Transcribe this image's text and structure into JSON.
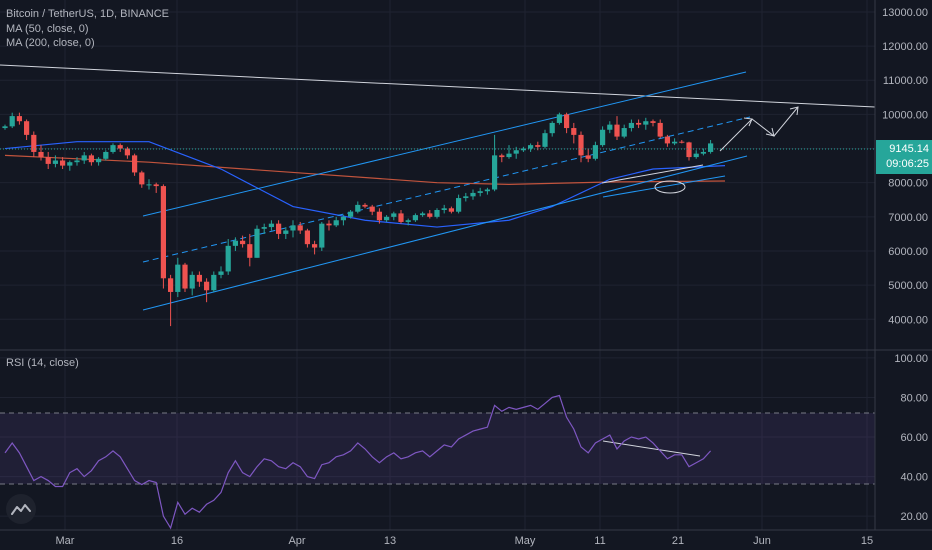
{
  "header": {
    "symbol_line": "Bitcoin / TetherUS, 1D, BINANCE",
    "ma50_label": "MA (50, close, 0)",
    "ma200_label": "MA (200, close, 0)",
    "rsi_label": "RSI (14, close)"
  },
  "price_tag": {
    "price": "9145.14",
    "countdown": "09:06:25"
  },
  "colors": {
    "background": "#131722",
    "up": "#26a69a",
    "down": "#ef5350",
    "ma50": "#2962ff",
    "ma200": "#c2543d",
    "channel": "#2196f3",
    "rsi": "#7e57c2",
    "grid": "#1f2331",
    "axis_text": "#b2b5be"
  },
  "chart_data": [
    {
      "type": "candlestick",
      "title": "Bitcoin / TetherUS, 1D, BINANCE",
      "x_tick_labels": [
        "Mar",
        "16",
        "Apr",
        "13",
        "May",
        "11",
        "21",
        "Jun",
        "15"
      ],
      "y_tick_labels": [
        "4000.00",
        "5000.00",
        "6000.00",
        "7000.00",
        "8000.00",
        "9000.00",
        "10000.00",
        "11000.00",
        "12000.00",
        "13000.00"
      ],
      "ylim": [
        3100,
        13350
      ],
      "grid": true,
      "current_price": 9145.14,
      "series": [
        {
          "name": "BTC/USDT daily",
          "ohlc": [
            [
              9600,
              9700,
              9550,
              9650
            ],
            [
              9650,
              10050,
              9600,
              9950
            ],
            [
              9950,
              10050,
              9700,
              9800
            ],
            [
              9800,
              9850,
              9250,
              9400
            ],
            [
              9400,
              9500,
              8750,
              8900
            ],
            [
              8900,
              9100,
              8650,
              8750
            ],
            [
              8750,
              8900,
              8400,
              8550
            ],
            [
              8550,
              8800,
              8450,
              8650
            ],
            [
              8650,
              8750,
              8400,
              8500
            ],
            [
              8500,
              8650,
              8350,
              8600
            ],
            [
              8600,
              8750,
              8500,
              8650
            ],
            [
              8650,
              8900,
              8550,
              8800
            ],
            [
              8800,
              8850,
              8500,
              8600
            ],
            [
              8600,
              8750,
              8500,
              8700
            ],
            [
              8700,
              8950,
              8650,
              8900
            ],
            [
              8900,
              9150,
              8850,
              9100
            ],
            [
              9100,
              9150,
              8900,
              9000
            ],
            [
              9000,
              9050,
              8700,
              8800
            ],
            [
              8800,
              8850,
              8200,
              8300
            ],
            [
              8300,
              8350,
              7850,
              7950
            ],
            [
              7950,
              8100,
              7800,
              7950
            ],
            [
              7950,
              8000,
              7700,
              7900
            ],
            [
              7900,
              7950,
              4900,
              5200
            ],
            [
              5200,
              5300,
              3800,
              4800
            ],
            [
              4800,
              5800,
              4650,
              5600
            ],
            [
              5600,
              5650,
              4800,
              4900
            ],
            [
              4900,
              5400,
              4700,
              5300
            ],
            [
              5300,
              5400,
              4950,
              5100
            ],
            [
              5100,
              5200,
              4500,
              4850
            ],
            [
              4850,
              5400,
              4800,
              5300
            ],
            [
              5300,
              5550,
              5200,
              5400
            ],
            [
              5400,
              6350,
              5300,
              6150
            ],
            [
              6150,
              6400,
              6000,
              6300
            ],
            [
              6300,
              6450,
              6100,
              6200
            ],
            [
              6200,
              6500,
              5550,
              5800
            ],
            [
              5800,
              6750,
              5800,
              6650
            ],
            [
              6650,
              6800,
              6500,
              6700
            ],
            [
              6700,
              6900,
              6600,
              6800
            ],
            [
              6800,
              6900,
              6350,
              6500
            ],
            [
              6500,
              6700,
              6350,
              6600
            ],
            [
              6600,
              6900,
              6400,
              6750
            ],
            [
              6750,
              6850,
              6500,
              6600
            ],
            [
              6600,
              6650,
              6100,
              6200
            ],
            [
              6200,
              6300,
              5900,
              6100
            ],
            [
              6100,
              6850,
              6000,
              6800
            ],
            [
              6800,
              6900,
              6600,
              6750
            ],
            [
              6750,
              7000,
              6700,
              6900
            ],
            [
              6900,
              7050,
              6750,
              7000
            ],
            [
              7000,
              7200,
              6950,
              7150
            ],
            [
              7150,
              7450,
              7100,
              7350
            ],
            [
              7350,
              7400,
              7250,
              7300
            ],
            [
              7300,
              7350,
              7050,
              7150
            ],
            [
              7150,
              7250,
              6800,
              6900
            ],
            [
              6900,
              7050,
              6850,
              7000
            ],
            [
              7000,
              7150,
              6900,
              7100
            ],
            [
              7100,
              7200,
              6800,
              6850
            ],
            [
              6850,
              6950,
              6750,
              6900
            ],
            [
              6900,
              7100,
              6850,
              7050
            ],
            [
              7050,
              7150,
              7000,
              7100
            ],
            [
              7100,
              7200,
              6950,
              7000
            ],
            [
              7000,
              7250,
              6950,
              7200
            ],
            [
              7200,
              7350,
              7100,
              7250
            ],
            [
              7250,
              7300,
              7100,
              7150
            ],
            [
              7150,
              7650,
              7100,
              7550
            ],
            [
              7550,
              7700,
              7450,
              7600
            ],
            [
              7600,
              7800,
              7500,
              7700
            ],
            [
              7700,
              7850,
              7600,
              7750
            ],
            [
              7750,
              7850,
              7650,
              7800
            ],
            [
              7800,
              9400,
              7750,
              8800
            ],
            [
              8800,
              8850,
              8600,
              8750
            ],
            [
              8750,
              9100,
              8700,
              8850
            ],
            [
              8850,
              9050,
              8700,
              8950
            ],
            [
              8950,
              9050,
              8900,
              9000
            ],
            [
              9000,
              9150,
              8900,
              9100
            ],
            [
              9100,
              9200,
              8950,
              9050
            ],
            [
              9050,
              9550,
              9000,
              9450
            ],
            [
              9450,
              9800,
              9350,
              9750
            ],
            [
              9750,
              10050,
              9700,
              10000
            ],
            [
              10000,
              10050,
              9450,
              9600
            ],
            [
              9600,
              9750,
              9150,
              9400
            ],
            [
              9400,
              9500,
              8600,
              8800
            ],
            [
              8800,
              9000,
              8600,
              8700
            ],
            [
              8700,
              9200,
              8650,
              9100
            ],
            [
              9100,
              9650,
              9050,
              9550
            ],
            [
              9550,
              9800,
              9450,
              9700
            ],
            [
              9700,
              9950,
              9250,
              9350
            ],
            [
              9350,
              9700,
              9300,
              9600
            ],
            [
              9600,
              9850,
              9500,
              9750
            ],
            [
              9750,
              9850,
              9600,
              9700
            ],
            [
              9700,
              9900,
              9550,
              9800
            ],
            [
              9800,
              9850,
              9650,
              9750
            ],
            [
              9750,
              9850,
              9300,
              9350
            ],
            [
              9350,
              9400,
              9050,
              9150
            ],
            [
              9150,
              9300,
              9100,
              9200
            ],
            [
              9200,
              9250,
              9150,
              9180
            ],
            [
              9180,
              9200,
              8650,
              8750
            ],
            [
              8750,
              8950,
              8700,
              8850
            ],
            [
              8850,
              9000,
              8800,
              8900
            ],
            [
              8900,
              9250,
              8850,
              9150
            ]
          ]
        },
        {
          "name": "MA (50, close, 0)",
          "x": [
            0,
            10,
            20,
            30,
            40,
            50,
            60,
            70,
            76,
            84,
            90,
            100
          ],
          "values": [
            9000,
            9200,
            9200,
            8400,
            7300,
            6900,
            6700,
            6900,
            7300,
            8100,
            8400,
            8500
          ]
        },
        {
          "name": "MA (200, close, 0)",
          "x": [
            0,
            20,
            40,
            60,
            70,
            84,
            100
          ],
          "values": [
            8800,
            8600,
            8300,
            8000,
            7950,
            8020,
            8050
          ]
        }
      ]
    },
    {
      "type": "line",
      "title": "RSI (14, close)",
      "x_tick_labels": [
        "Mar",
        "16",
        "Apr",
        "13",
        "May",
        "11",
        "21",
        "Jun",
        "15"
      ],
      "y_tick_labels": [
        "20.00",
        "40.00",
        "60.00",
        "80.00",
        "100.00"
      ],
      "ylim": [
        13,
        104
      ],
      "bands": [
        30,
        70
      ],
      "series": [
        {
          "name": "RSI",
          "values": [
            52,
            57,
            52,
            45,
            38,
            40,
            38,
            35,
            35,
            42,
            44,
            40,
            43,
            48,
            50,
            53,
            50,
            44,
            38,
            36,
            38,
            37,
            20,
            14,
            27,
            21,
            24,
            22,
            26,
            28,
            32,
            42,
            48,
            42,
            40,
            45,
            49,
            48,
            45,
            44,
            47,
            45,
            40,
            39,
            46,
            47,
            50,
            51,
            53,
            57,
            54,
            50,
            47,
            50,
            52,
            49,
            50,
            52,
            53,
            50,
            53,
            56,
            55,
            59,
            61,
            63,
            64,
            65,
            76,
            73,
            75,
            74,
            75,
            76,
            74,
            77,
            80,
            81,
            70,
            64,
            55,
            52,
            57,
            59,
            61,
            54,
            58,
            60,
            59,
            60,
            57,
            53,
            49,
            51,
            51,
            45,
            47,
            49,
            53
          ]
        }
      ]
    }
  ]
}
